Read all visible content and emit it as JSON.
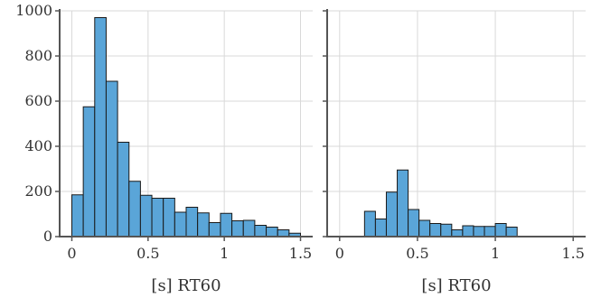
{
  "chart_data": [
    {
      "type": "bar",
      "panel": "left",
      "xlabel": "[s] RT60",
      "ylabel": "",
      "xlim": [
        -0.08,
        1.58
      ],
      "ylim": [
        0,
        1000
      ],
      "xticks": [
        "0",
        "0.5",
        "1",
        "1.5"
      ],
      "xtick_values": [
        0,
        0.5,
        1,
        1.5
      ],
      "yticks": [
        "0",
        "200",
        "400",
        "600",
        "800",
        "1000"
      ],
      "ytick_values": [
        0,
        200,
        400,
        600,
        800,
        1000
      ],
      "grid": true,
      "bar_color": "#5aa5d8",
      "bin_width": 0.075,
      "bin_starts": [
        0.0,
        0.075,
        0.15,
        0.225,
        0.3,
        0.375,
        0.45,
        0.525,
        0.6,
        0.675,
        0.75,
        0.825,
        0.9,
        0.975,
        1.05,
        1.125,
        1.2,
        1.275,
        1.35,
        1.425
      ],
      "values": [
        185,
        575,
        970,
        688,
        418,
        245,
        183,
        170,
        170,
        108,
        130,
        105,
        62,
        103,
        70,
        72,
        50,
        42,
        30,
        15
      ]
    },
    {
      "type": "bar",
      "panel": "right",
      "xlabel": "[s] RT60",
      "ylabel": "",
      "xlim": [
        -0.08,
        1.58
      ],
      "ylim": [
        0,
        1000
      ],
      "xticks": [
        "0",
        "0.5",
        "1",
        "1.5"
      ],
      "xtick_values": [
        0,
        0.5,
        1,
        1.5
      ],
      "yticks": [],
      "ytick_values": [
        0,
        200,
        400,
        600,
        800,
        1000
      ],
      "grid": true,
      "bar_color": "#5aa5d8",
      "bin_width": 0.07,
      "bin_starts": [
        0.16,
        0.23,
        0.3,
        0.37,
        0.44,
        0.51,
        0.58,
        0.65,
        0.72,
        0.79,
        0.86,
        0.93,
        1.0,
        1.07,
        1.14
      ],
      "values": [
        112,
        78,
        197,
        295,
        120,
        72,
        58,
        55,
        30,
        48,
        45,
        45,
        58,
        42,
        0
      ]
    }
  ]
}
